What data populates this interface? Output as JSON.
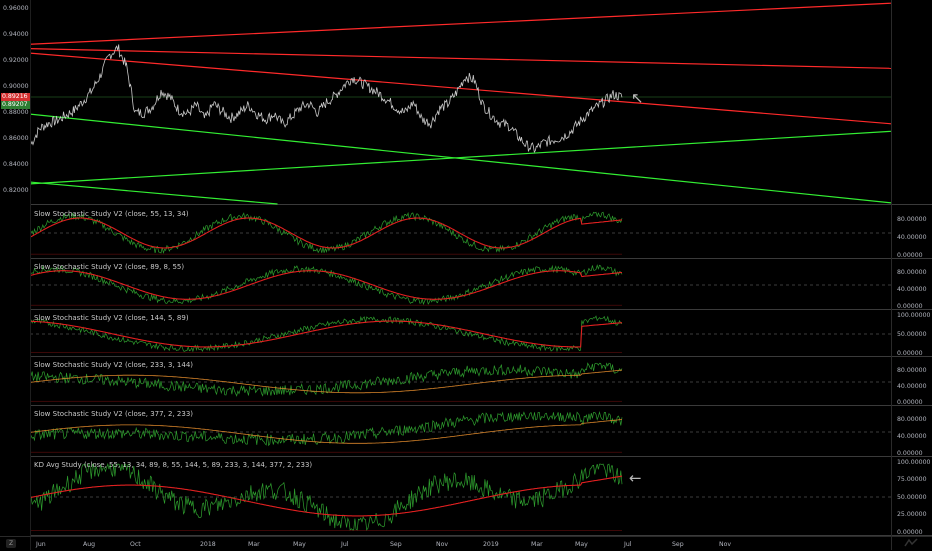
{
  "chart_data": {
    "type": "line",
    "x_tick_labels": [
      "Jun",
      "Aug",
      "Oct",
      "2018",
      "Mar",
      "May",
      "Jul",
      "Sep",
      "Nov",
      "2019",
      "Mar",
      "May",
      "Jul",
      "Sep",
      "Nov"
    ],
    "main_pane": {
      "price_ticks": [
        "0.96000",
        "0.94000",
        "0.92000",
        "0.90000",
        "0.88000",
        "0.86000",
        "0.84000",
        "0.82000"
      ],
      "price_tags": [
        {
          "value": "0.89216",
          "color": "#d32f2f"
        },
        {
          "value": "0.89207",
          "color": "#2e7d32"
        }
      ],
      "ylim": [
        0.81,
        0.965
      ],
      "last_price": 0.8921,
      "price_series": [
        0.856,
        0.868,
        0.872,
        0.874,
        0.878,
        0.882,
        0.889,
        0.897,
        0.909,
        0.924,
        0.93,
        0.915,
        0.88,
        0.88,
        0.885,
        0.897,
        0.892,
        0.882,
        0.879,
        0.886,
        0.875,
        0.887,
        0.881,
        0.876,
        0.88,
        0.886,
        0.879,
        0.875,
        0.879,
        0.871,
        0.877,
        0.884,
        0.887,
        0.88,
        0.888,
        0.893,
        0.901,
        0.907,
        0.903,
        0.899,
        0.895,
        0.89,
        0.884,
        0.88,
        0.888,
        0.875,
        0.872,
        0.883,
        0.887,
        0.896,
        0.908,
        0.905,
        0.886,
        0.878,
        0.872,
        0.87,
        0.862,
        0.855,
        0.852,
        0.857,
        0.859,
        0.861,
        0.865,
        0.872,
        0.879,
        0.884,
        0.889,
        0.894,
        0.892
      ],
      "trendlines": [
        {
          "color": "red",
          "from": [
            "2017-06",
            0.933
          ],
          "to": [
            "2019-11",
            0.958
          ]
        },
        {
          "color": "red",
          "from": [
            "2017-06",
            0.929
          ],
          "to": [
            "2019-11",
            0.917
          ]
        },
        {
          "color": "red",
          "from": [
            "2017-06",
            0.925
          ],
          "to": [
            "2019-11",
            0.882
          ]
        },
        {
          "color": "green",
          "from": [
            "2017-06",
            0.878
          ],
          "to": [
            "2019-11",
            0.824
          ]
        },
        {
          "color": "green",
          "from": [
            "2017-06",
            0.826
          ],
          "to": [
            "2019-11",
            0.858
          ]
        },
        {
          "color": "green",
          "from": [
            "2017-06",
            0.826
          ],
          "to": [
            "2018-04",
            0.81
          ]
        }
      ]
    },
    "indicator_panes": [
      {
        "title": "Slow Stochastic Study V2 (close, 55, 13, 34)",
        "ticks": [
          "80.00000",
          "40.00000",
          "0.00000"
        ],
        "ylim": [
          0,
          100
        ],
        "dashed_levels": [
          50
        ]
      },
      {
        "title": "Slow Stochastic Study V2 (close, 89, 8, 55)",
        "ticks": [
          "80.00000",
          "40.00000",
          "0.00000"
        ],
        "ylim": [
          0,
          100
        ],
        "dashed_levels": [
          50
        ]
      },
      {
        "title": "Slow Stochastic Study V2 (close, 144, 5, 89)",
        "ticks": [
          "100.00000",
          "50.00000",
          "0.00000"
        ],
        "ylim": [
          0,
          100
        ],
        "dashed_levels": [
          50
        ]
      },
      {
        "title": "Slow Stochastic Study V2 (close, 233, 3, 144)",
        "ticks": [
          "80.00000",
          "40.00000",
          "0.00000"
        ],
        "ylim": [
          0,
          100
        ],
        "dashed_levels": [
          50
        ]
      },
      {
        "title": "Slow Stochastic Study V2 (close, 377, 2, 233)",
        "ticks": [
          "80.00000",
          "40.00000",
          "0.00000"
        ],
        "ylim": [
          0,
          100
        ],
        "dashed_levels": [
          50
        ]
      },
      {
        "title": "KD Avg Study (close, 55, 13, 34, 89, 8, 55, 144, 5, 89, 233, 3, 144, 377, 2, 233)",
        "ticks": [
          "100.00000",
          "75.00000",
          "50.00000",
          "25.00000",
          "0.00000"
        ],
        "ylim": [
          0,
          100
        ],
        "dashed_levels": [
          50
        ]
      }
    ],
    "grid": false,
    "colors": {
      "background": "#000000",
      "price": "#c8c8c8",
      "k_line": "#2e9d2e",
      "d_line": "#e02020",
      "resistance": "#ff2a2a",
      "support": "#33ee33",
      "dashed": "#777777"
    }
  },
  "ui": {
    "z_button": "Z"
  }
}
